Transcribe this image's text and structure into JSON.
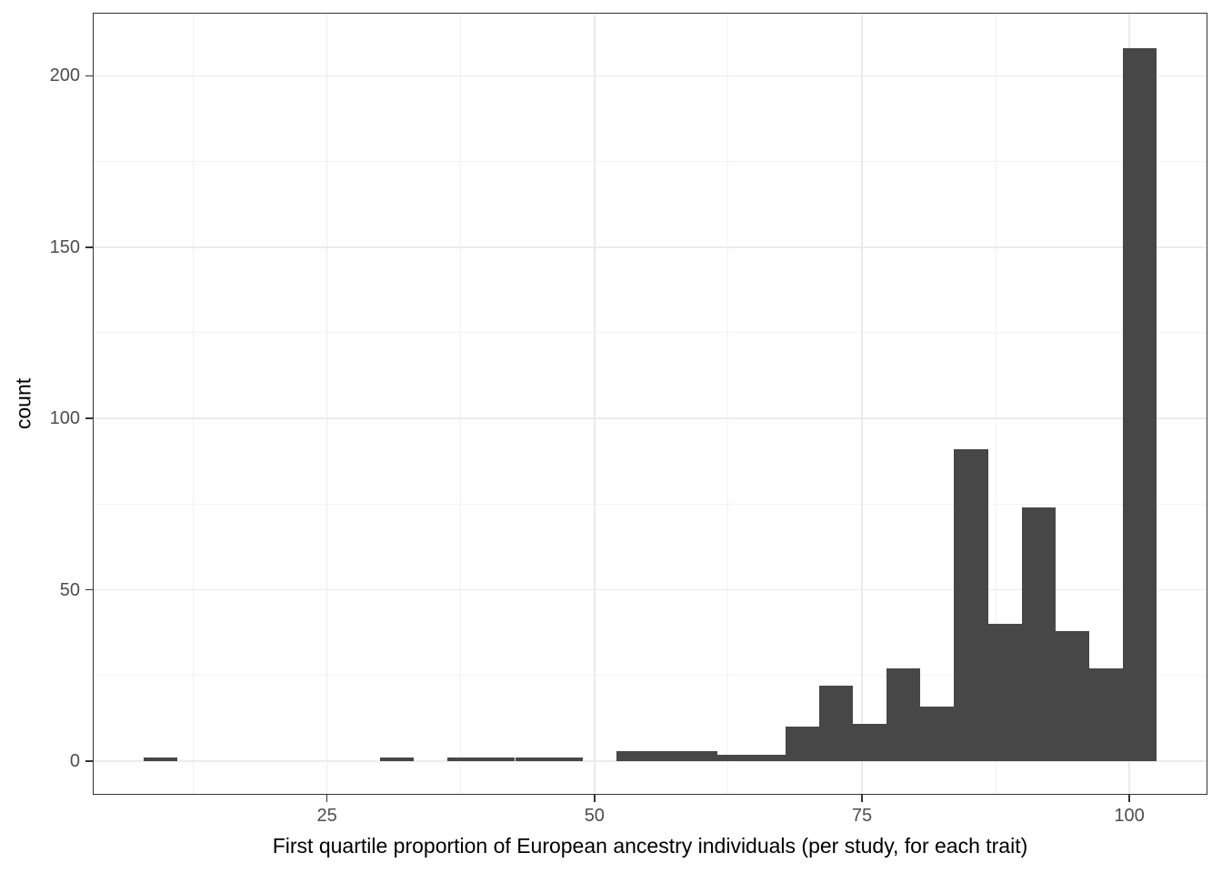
{
  "chart_data": {
    "type": "bar",
    "subtype": "histogram",
    "title": "",
    "xlabel": "First quartile proportion of European ancestry individuals (per study, for each trait)",
    "ylabel": "count",
    "x_tick_labels": [
      "25",
      "50",
      "75",
      "100"
    ],
    "x_ticks": [
      25,
      50,
      75,
      100
    ],
    "x_minor_breaks": [
      12.5,
      37.5,
      62.5,
      87.5
    ],
    "y_tick_labels": [
      "0",
      "50",
      "100",
      "150",
      "200"
    ],
    "y_ticks": [
      0,
      50,
      100,
      150,
      200
    ],
    "y_minor_breaks": [
      25,
      75,
      125,
      175
    ],
    "xlim": [
      3.1,
      107.3
    ],
    "ylim": [
      -9.8,
      218.4
    ],
    "grid": "on",
    "legend": "none",
    "bin_width": 3.16,
    "bin_edges": [
      7.86,
      11.02,
      14.17,
      17.33,
      20.49,
      23.64,
      26.8,
      29.96,
      33.11,
      36.27,
      39.43,
      42.58,
      45.74,
      48.9,
      52.05,
      55.21,
      58.37,
      61.52,
      64.68,
      67.84,
      70.99,
      74.15,
      77.31,
      80.46,
      83.62,
      86.78,
      89.93,
      93.09,
      96.25,
      99.4,
      102.56
    ],
    "counts": [
      1,
      0,
      0,
      0,
      0,
      0,
      0,
      1,
      0,
      1,
      1,
      1,
      1,
      0,
      3,
      3,
      3,
      2,
      2,
      10,
      22,
      11,
      27,
      16,
      91,
      40,
      74,
      38,
      27,
      208
    ],
    "total_count": 583,
    "max_count": 208
  },
  "style": {
    "bar_color": "#474747",
    "panel_border_color": "#333333",
    "grid_major_color": "#ebebeb",
    "grid_minor_color": "#f2f2f2",
    "tick_color": "#333333",
    "axis_text_color": "#4d4d4d",
    "axis_title_color": "#000000",
    "background_color": "#ffffff"
  }
}
